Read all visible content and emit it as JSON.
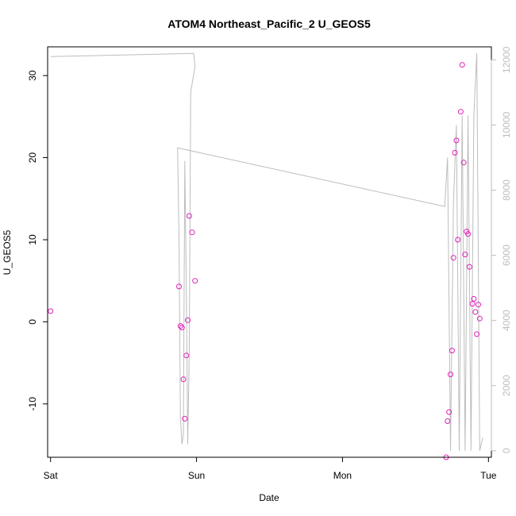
{
  "chart_data": {
    "type": "scatter",
    "title": "ATOM4 Northeast_Pacific_2 U_GEOS5",
    "xlabel": "Date",
    "ylabel": "U_GEOS5",
    "x_unit": "days since Sat 00:00",
    "xlim": [
      -0.02,
      3.02
    ],
    "ylim": [
      -16.5,
      33.5
    ],
    "y_ticks": [
      -10,
      0,
      10,
      20,
      30
    ],
    "x_ticks": [
      {
        "value": 0,
        "label": "Sat"
      },
      {
        "value": 1,
        "label": "Sun"
      },
      {
        "value": 2,
        "label": "Mon"
      },
      {
        "value": 3,
        "label": "Tue"
      }
    ],
    "y2_label": "",
    "y2_lim": [
      -200,
      12400
    ],
    "y2_ticks": [
      0,
      2000,
      4000,
      6000,
      8000,
      10000,
      12000
    ],
    "colors": {
      "points": "#e020b8",
      "altitude_line": "#bdbdbd"
    },
    "series": [
      {
        "axis": "left",
        "style": "points",
        "x": [
          0.0,
          0.88,
          0.89,
          0.9,
          0.91,
          0.92,
          0.93,
          0.94,
          0.95,
          0.97,
          0.99,
          2.71,
          2.72,
          2.73,
          2.74,
          2.75,
          2.76,
          2.77,
          2.78,
          2.79,
          2.81,
          2.82,
          2.83,
          2.84,
          2.85,
          2.86,
          2.87,
          2.89,
          2.9,
          2.91,
          2.92,
          2.93,
          2.94
        ],
        "y": [
          1.3,
          4.3,
          -0.5,
          -0.7,
          -7.0,
          -11.8,
          -4.1,
          0.2,
          12.9,
          10.9,
          5.0,
          -16.5,
          -12.1,
          -11.0,
          -6.4,
          -3.5,
          7.8,
          20.6,
          22.1,
          10.0,
          25.6,
          31.3,
          19.4,
          8.2,
          11.0,
          10.7,
          6.7,
          2.2,
          2.8,
          1.2,
          -1.5,
          2.1,
          0.4
        ]
      },
      {
        "axis": "right",
        "style": "line",
        "x": [
          0.0,
          0.98,
          0.99,
          0.96,
          0.95,
          0.94,
          0.93,
          0.92,
          0.91,
          0.9,
          0.89,
          0.88,
          0.87,
          2.7,
          2.72,
          2.74,
          2.76,
          2.78,
          2.8,
          2.82,
          2.84,
          2.86,
          2.88,
          2.9,
          2.92,
          2.94,
          2.96
        ],
        "y": [
          12100,
          12200,
          11800,
          11000,
          3000,
          200,
          5000,
          8900,
          500,
          200,
          1000,
          6500,
          9300,
          7500,
          9000,
          0,
          7600,
          10000,
          0,
          10300,
          0,
          10300,
          0,
          10300,
          12200,
          0,
          400
        ]
      }
    ]
  }
}
